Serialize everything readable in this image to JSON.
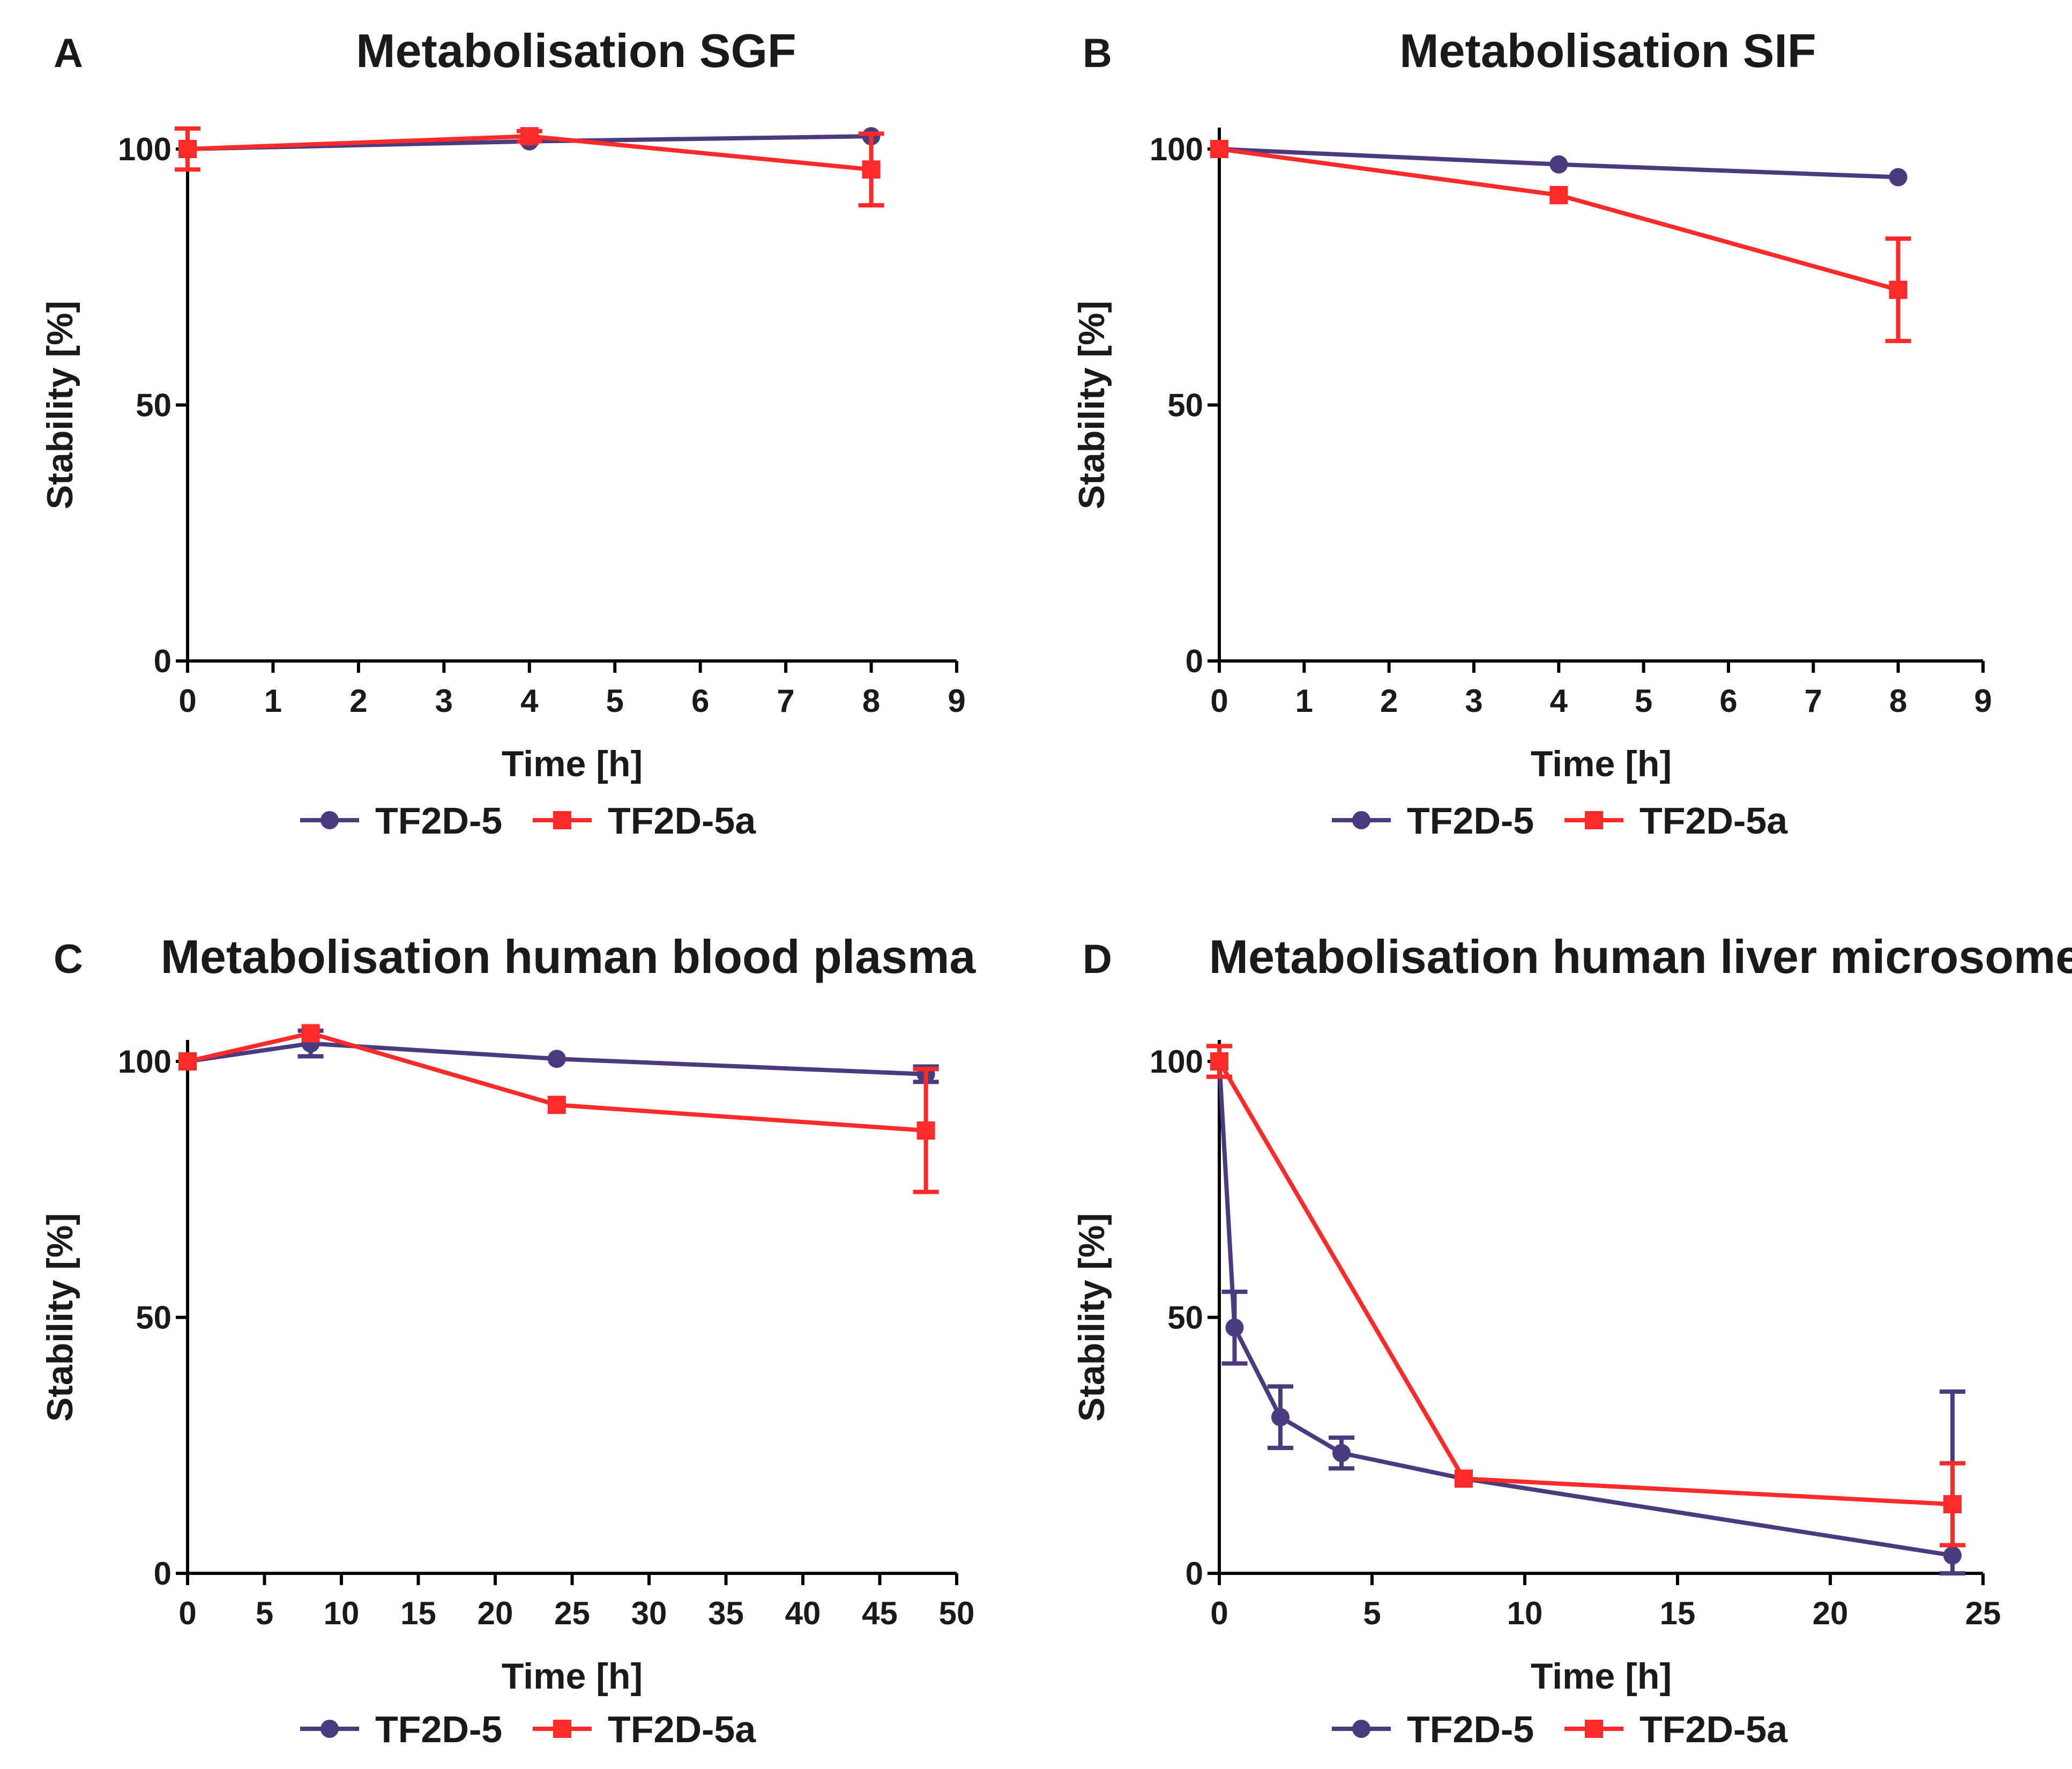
{
  "colors": {
    "tf2d5": "#4b3a7e",
    "tf2d5a": "#ff2a2a"
  },
  "chart_data": [
    {
      "type": "line",
      "letter": "A",
      "title": "Metabolisation SGF",
      "xlabel": "Time [h]",
      "ylabel": "Stability [%]",
      "xlim": [
        0,
        9
      ],
      "ylim": [
        0,
        100
      ],
      "xticks": [
        0,
        1,
        2,
        3,
        4,
        5,
        6,
        7,
        8,
        9
      ],
      "yticks": [
        0,
        50,
        100
      ],
      "series": [
        {
          "name": "TF2D-5",
          "marker": "circle",
          "x": [
            0,
            4,
            8
          ],
          "y": [
            100,
            101.5,
            102.5
          ],
          "err": [
            0,
            0,
            0
          ]
        },
        {
          "name": "TF2D-5a",
          "marker": "square",
          "x": [
            0,
            4,
            8
          ],
          "y": [
            100,
            102.5,
            96
          ],
          "err": [
            4,
            1,
            7
          ]
        }
      ],
      "legend": [
        "TF2D-5",
        "TF2D-5a"
      ]
    },
    {
      "type": "line",
      "letter": "B",
      "title": "Metabolisation SIF",
      "xlabel": "Time [h]",
      "ylabel": "Stability [%]",
      "xlim": [
        0,
        9
      ],
      "ylim": [
        0,
        100
      ],
      "xticks": [
        0,
        1,
        2,
        3,
        4,
        5,
        6,
        7,
        8,
        9
      ],
      "yticks": [
        0,
        50,
        100
      ],
      "series": [
        {
          "name": "TF2D-5",
          "marker": "circle",
          "x": [
            0,
            4,
            8
          ],
          "y": [
            100,
            97,
            94.5
          ],
          "err": [
            0,
            0,
            0
          ]
        },
        {
          "name": "TF2D-5a",
          "marker": "square",
          "x": [
            0,
            4,
            8
          ],
          "y": [
            100,
            91,
            72.5
          ],
          "err": [
            0,
            0,
            10
          ]
        }
      ],
      "legend": [
        "TF2D-5",
        "TF2D-5a"
      ]
    },
    {
      "type": "line",
      "letter": "C",
      "title": "Metabolisation human blood plasma",
      "xlabel": "Time [h]",
      "ylabel": "Stability [%]",
      "xlim": [
        0,
        50
      ],
      "ylim": [
        0,
        100
      ],
      "xticks": [
        0,
        5,
        10,
        15,
        20,
        25,
        30,
        35,
        40,
        45,
        50
      ],
      "yticks": [
        0,
        50,
        100
      ],
      "series": [
        {
          "name": "TF2D-5",
          "marker": "circle",
          "x": [
            0,
            8,
            24,
            48
          ],
          "y": [
            100,
            103.5,
            100.5,
            97.5
          ],
          "err": [
            0,
            2.5,
            0,
            1.5
          ]
        },
        {
          "name": "TF2D-5a",
          "marker": "square",
          "x": [
            0,
            8,
            24,
            48
          ],
          "y": [
            100,
            105.5,
            91.5,
            86.5
          ],
          "err": [
            0,
            0,
            0,
            12
          ]
        }
      ],
      "legend": [
        "TF2D-5",
        "TF2D-5a"
      ]
    },
    {
      "type": "line",
      "letter": "D",
      "title": "Metabolisation human liver microsome",
      "xlabel": "Time [h]",
      "ylabel": "Stability [%]",
      "xlim": [
        0,
        25
      ],
      "ylim": [
        0,
        100
      ],
      "xticks": [
        0,
        5,
        10,
        15,
        20,
        25
      ],
      "yticks": [
        0,
        50,
        100
      ],
      "series": [
        {
          "name": "TF2D-5",
          "marker": "circle",
          "x": [
            0,
            0.5,
            2,
            4,
            8,
            24
          ],
          "y": [
            100,
            48,
            30.5,
            23.5,
            18.5,
            3.5
          ],
          "err": [
            3,
            7,
            6,
            3,
            0,
            32
          ]
        },
        {
          "name": "TF2D-5a",
          "marker": "square",
          "x": [
            0,
            8,
            24
          ],
          "y": [
            100,
            18.5,
            13.5
          ],
          "err": [
            3,
            0,
            8
          ]
        }
      ],
      "legend": [
        "TF2D-5",
        "TF2D-5a"
      ]
    }
  ]
}
